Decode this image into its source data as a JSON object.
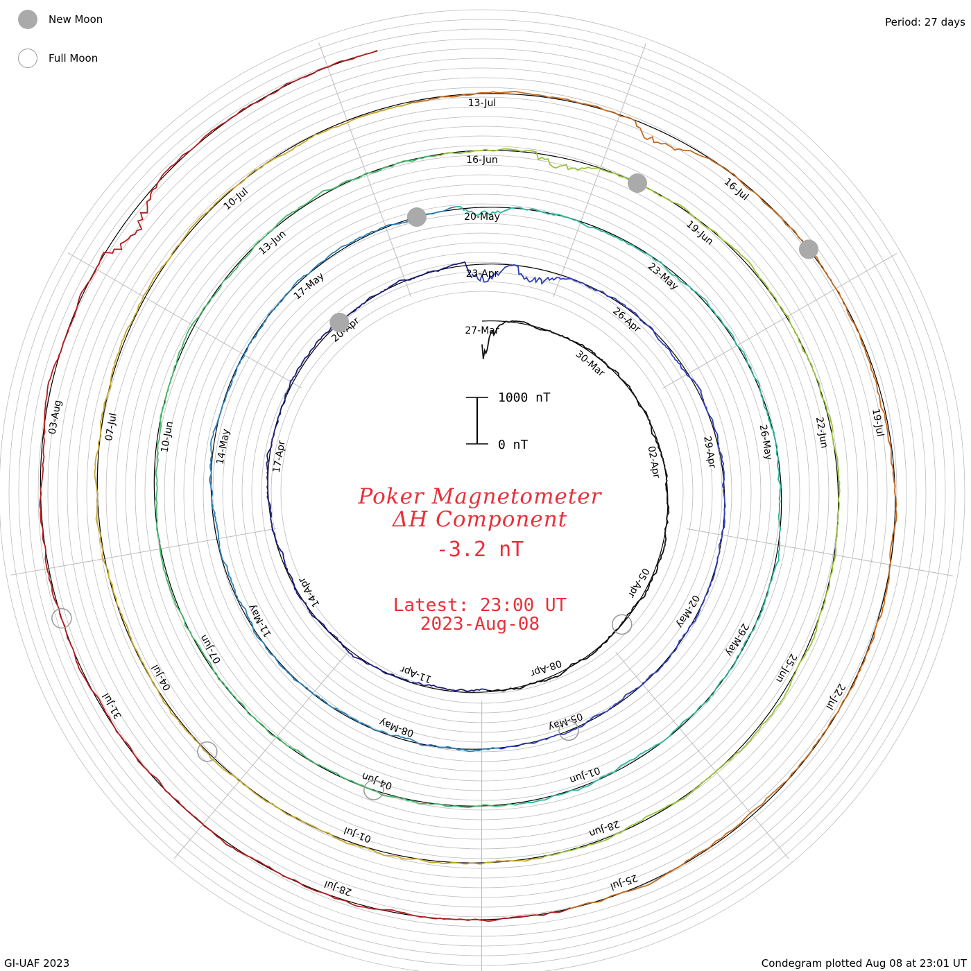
{
  "legend": {
    "new_moon_label": "New Moon",
    "full_moon_label": "Full Moon"
  },
  "period_label": "Period: 27 days",
  "footer": {
    "left": "GI-UAF 2023",
    "right": "Condegram plotted Aug 08 at 23:01 UT"
  },
  "center": {
    "title_line1": "Poker Magnetometer",
    "title_line2": "ΔH Component",
    "current_value": "-3.2 nT",
    "latest_line1": "Latest: 23:00 UT",
    "latest_line2": "2023-Aug-08"
  },
  "scale_bar": {
    "top_label": "1000 nT",
    "bottom_label": "0 nT"
  },
  "colors": {
    "text_red": "#e8303a",
    "grid": "#bbbbbb",
    "new_moon": "#aaaaaa",
    "full_moon_outline": "#999999"
  },
  "chart_data": {
    "type": "line",
    "subtype": "condegram spiral",
    "period_days": 27,
    "start_date": "2023-03-27",
    "end_date": "2023-08-08",
    "latest_value_nT": -3.2,
    "series_colors": [
      "#111111",
      "#1d1d7a",
      "#2e3fb5",
      "#2a7fb8",
      "#2bb59a",
      "#46b86a",
      "#98c23a",
      "#c8a830",
      "#c46a1e",
      "#b21e1e"
    ],
    "date_labels": [
      "27-Mar",
      "30-Mar",
      "02-Apr",
      "05-Apr",
      "08-Apr",
      "11-Apr",
      "14-Apr",
      "17-Apr",
      "20-Apr",
      "23-Apr",
      "26-Apr",
      "29-Apr",
      "02-May",
      "05-May",
      "08-May",
      "11-May",
      "14-May",
      "17-May",
      "20-May",
      "23-May",
      "26-May",
      "29-May",
      "01-Jun",
      "04-Jun",
      "07-Jun",
      "10-Jun",
      "13-Jun",
      "16-Jun",
      "19-Jun",
      "22-Jun",
      "25-Jun",
      "28-Jun",
      "01-Jul",
      "04-Jul",
      "07-Jul",
      "10-Jul",
      "13-Jul",
      "16-Jul",
      "19-Jul",
      "22-Jul",
      "25-Jul",
      "28-Jul",
      "31-Jul",
      "03-Aug"
    ],
    "new_moons": [
      "2023-04-20",
      "2023-05-19",
      "2023-06-18",
      "2023-07-17"
    ],
    "full_moons": [
      "2023-04-06",
      "2023-05-05",
      "2023-06-04",
      "2023-07-03",
      "2023-08-01"
    ],
    "disturbances": [
      {
        "date": "2023-03-27",
        "min_nT": -600
      },
      {
        "date": "2023-04-23",
        "min_nT": -400
      },
      {
        "date": "2023-04-24",
        "min_nT": -300
      },
      {
        "date": "2023-05-20",
        "min_nT": -150
      },
      {
        "date": "2023-06-17",
        "min_nT": -200
      },
      {
        "date": "2023-07-15",
        "min_nT": -200
      },
      {
        "date": "2023-08-05",
        "min_nT": -300
      }
    ]
  }
}
